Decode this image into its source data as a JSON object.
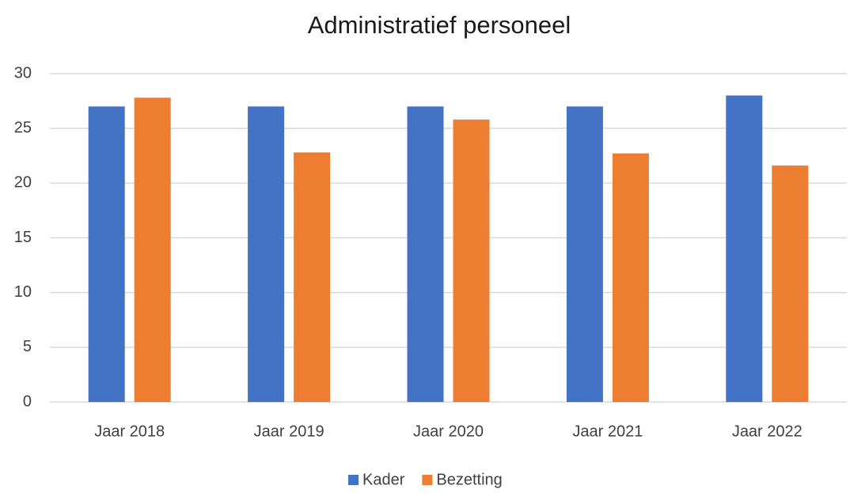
{
  "chart_data": {
    "type": "bar",
    "title": "Administratief personeel",
    "categories": [
      "Jaar 2018",
      "Jaar 2019",
      "Jaar 2020",
      "Jaar 2021",
      "Jaar 2022"
    ],
    "series": [
      {
        "name": "Kader",
        "color": "#4472c4",
        "values": [
          27,
          27,
          27,
          27,
          28
        ]
      },
      {
        "name": "Bezetting",
        "color": "#ed7d31",
        "values": [
          27.8,
          22.8,
          25.8,
          22.7,
          21.6
        ]
      }
    ],
    "ylim": [
      0,
      30
    ],
    "yticks": [
      0,
      5,
      10,
      15,
      20,
      25,
      30
    ],
    "grid": true,
    "legend": "bottom"
  }
}
